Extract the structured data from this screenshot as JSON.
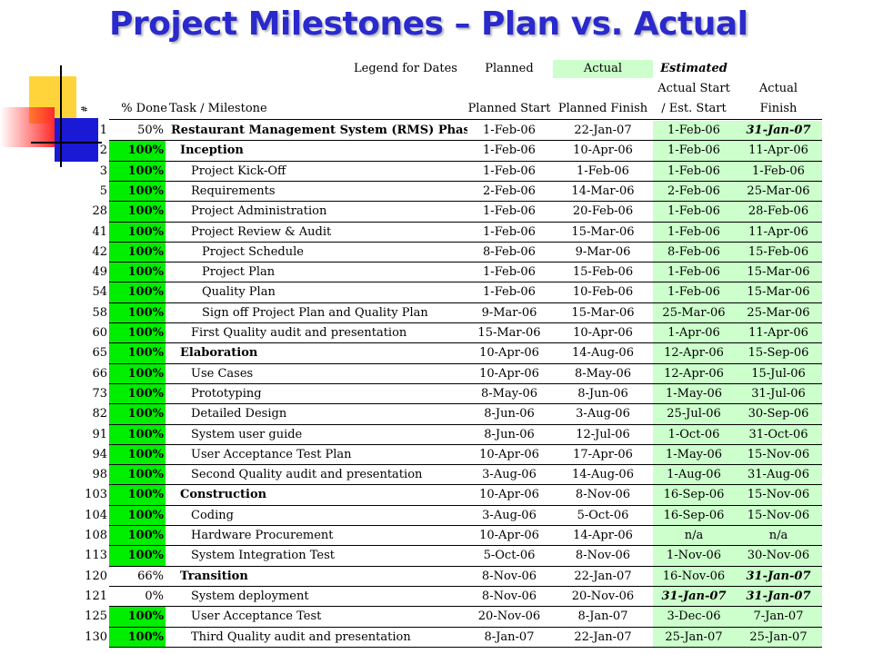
{
  "title": "Project Milestones – Plan vs. Actual",
  "legend": {
    "label": "Legend for Dates",
    "planned": "Planned",
    "actual": "Actual",
    "estimated": "Estimated"
  },
  "columns": {
    "num": "#",
    "pct": "% Done",
    "task": "Task / Milestone",
    "planned_start": "Planned Start",
    "planned_finish": "Planned Finish",
    "actual_start_1": "Actual Start",
    "actual_start_2": "/ Est. Start",
    "actual_finish_1": "Actual",
    "actual_finish_2": "Finish"
  },
  "colors": {
    "title": "#2a2acc",
    "done_green": "#00ee00",
    "actual_bg": "#ccffcc"
  },
  "rows": [
    {
      "num": "1",
      "pct": "50%",
      "task": "Restaurant Management System (RMS) Phase I",
      "level": "first",
      "bold": true,
      "ps": "1-Feb-06",
      "pf": "22-Jan-07",
      "as": "1-Feb-06",
      "af": "31-Jan-07",
      "as_est": false,
      "af_est": true,
      "green": false
    },
    {
      "num": "2",
      "pct": "100%",
      "task": "Inception",
      "level": "0",
      "bold": true,
      "ps": "1-Feb-06",
      "pf": "10-Apr-06",
      "as": "1-Feb-06",
      "af": "11-Apr-06",
      "as_est": false,
      "af_est": false,
      "green": true
    },
    {
      "num": "3",
      "pct": "100%",
      "task": "Project Kick-Off",
      "level": "1",
      "bold": false,
      "ps": "1-Feb-06",
      "pf": "1-Feb-06",
      "as": "1-Feb-06",
      "af": "1-Feb-06",
      "as_est": false,
      "af_est": false,
      "green": true
    },
    {
      "num": "5",
      "pct": "100%",
      "task": "Requirements",
      "level": "1",
      "bold": false,
      "ps": "2-Feb-06",
      "pf": "14-Mar-06",
      "as": "2-Feb-06",
      "af": "25-Mar-06",
      "as_est": false,
      "af_est": false,
      "green": true
    },
    {
      "num": "28",
      "pct": "100%",
      "task": "Project Administration",
      "level": "1",
      "bold": false,
      "ps": "1-Feb-06",
      "pf": "20-Feb-06",
      "as": "1-Feb-06",
      "af": "28-Feb-06",
      "as_est": false,
      "af_est": false,
      "green": true
    },
    {
      "num": "41",
      "pct": "100%",
      "task": "Project Review & Audit",
      "level": "1",
      "bold": false,
      "ps": "1-Feb-06",
      "pf": "15-Mar-06",
      "as": "1-Feb-06",
      "af": "11-Apr-06",
      "as_est": false,
      "af_est": false,
      "green": true
    },
    {
      "num": "42",
      "pct": "100%",
      "task": "Project Schedule",
      "level": "2",
      "bold": false,
      "ps": "8-Feb-06",
      "pf": "9-Mar-06",
      "as": "8-Feb-06",
      "af": "15-Feb-06",
      "as_est": false,
      "af_est": false,
      "green": true
    },
    {
      "num": "49",
      "pct": "100%",
      "task": "Project Plan",
      "level": "2",
      "bold": false,
      "ps": "1-Feb-06",
      "pf": "15-Feb-06",
      "as": "1-Feb-06",
      "af": "15-Mar-06",
      "as_est": false,
      "af_est": false,
      "green": true
    },
    {
      "num": "54",
      "pct": "100%",
      "task": "Quality Plan",
      "level": "2",
      "bold": false,
      "ps": "1-Feb-06",
      "pf": "10-Feb-06",
      "as": "1-Feb-06",
      "af": "15-Mar-06",
      "as_est": false,
      "af_est": false,
      "green": true
    },
    {
      "num": "58",
      "pct": "100%",
      "task": "Sign off Project Plan and Quality Plan",
      "level": "2",
      "bold": false,
      "ps": "9-Mar-06",
      "pf": "15-Mar-06",
      "as": "25-Mar-06",
      "af": "25-Mar-06",
      "as_est": false,
      "af_est": false,
      "green": true
    },
    {
      "num": "60",
      "pct": "100%",
      "task": "First Quality audit and presentation",
      "level": "1",
      "bold": false,
      "ps": "15-Mar-06",
      "pf": "10-Apr-06",
      "as": "1-Apr-06",
      "af": "11-Apr-06",
      "as_est": false,
      "af_est": false,
      "green": true
    },
    {
      "num": "65",
      "pct": "100%",
      "task": "Elaboration",
      "level": "0",
      "bold": true,
      "ps": "10-Apr-06",
      "pf": "14-Aug-06",
      "as": "12-Apr-06",
      "af": "15-Sep-06",
      "as_est": false,
      "af_est": false,
      "green": true
    },
    {
      "num": "66",
      "pct": "100%",
      "task": "Use Cases",
      "level": "1",
      "bold": false,
      "ps": "10-Apr-06",
      "pf": "8-May-06",
      "as": "12-Apr-06",
      "af": "15-Jul-06",
      "as_est": false,
      "af_est": false,
      "green": true
    },
    {
      "num": "73",
      "pct": "100%",
      "task": "Prototyping",
      "level": "1",
      "bold": false,
      "ps": "8-May-06",
      "pf": "8-Jun-06",
      "as": "1-May-06",
      "af": "31-Jul-06",
      "as_est": false,
      "af_est": false,
      "green": true
    },
    {
      "num": "82",
      "pct": "100%",
      "task": "Detailed Design",
      "level": "1",
      "bold": false,
      "ps": "8-Jun-06",
      "pf": "3-Aug-06",
      "as": "25-Jul-06",
      "af": "30-Sep-06",
      "as_est": false,
      "af_est": false,
      "green": true
    },
    {
      "num": "91",
      "pct": "100%",
      "task": "System user guide",
      "level": "1",
      "bold": false,
      "ps": "8-Jun-06",
      "pf": "12-Jul-06",
      "as": "1-Oct-06",
      "af": "31-Oct-06",
      "as_est": false,
      "af_est": false,
      "green": true
    },
    {
      "num": "94",
      "pct": "100%",
      "task": "User Acceptance Test Plan",
      "level": "1",
      "bold": false,
      "ps": "10-Apr-06",
      "pf": "17-Apr-06",
      "as": "1-May-06",
      "af": "15-Nov-06",
      "as_est": false,
      "af_est": false,
      "green": true
    },
    {
      "num": "98",
      "pct": "100%",
      "task": "Second Quality audit and presentation",
      "level": "1",
      "bold": false,
      "ps": "3-Aug-06",
      "pf": "14-Aug-06",
      "as": "1-Aug-06",
      "af": "31-Aug-06",
      "as_est": false,
      "af_est": false,
      "green": true
    },
    {
      "num": "103",
      "pct": "100%",
      "task": "Construction",
      "level": "0",
      "bold": true,
      "ps": "10-Apr-06",
      "pf": "8-Nov-06",
      "as": "16-Sep-06",
      "af": "15-Nov-06",
      "as_est": false,
      "af_est": false,
      "green": true
    },
    {
      "num": "104",
      "pct": "100%",
      "task": "Coding",
      "level": "1",
      "bold": false,
      "ps": "3-Aug-06",
      "pf": "5-Oct-06",
      "as": "16-Sep-06",
      "af": "15-Nov-06",
      "as_est": false,
      "af_est": false,
      "green": true
    },
    {
      "num": "108",
      "pct": "100%",
      "task": "Hardware Procurement",
      "level": "1",
      "bold": false,
      "ps": "10-Apr-06",
      "pf": "14-Apr-06",
      "as": "n/a",
      "af": "n/a",
      "as_est": false,
      "af_est": false,
      "green": true
    },
    {
      "num": "113",
      "pct": "100%",
      "task": "System Integration Test",
      "level": "1",
      "bold": false,
      "ps": "5-Oct-06",
      "pf": "8-Nov-06",
      "as": "1-Nov-06",
      "af": "30-Nov-06",
      "as_est": false,
      "af_est": false,
      "green": true
    },
    {
      "num": "120",
      "pct": "66%",
      "task": "Transition",
      "level": "0",
      "bold": true,
      "ps": "8-Nov-06",
      "pf": "22-Jan-07",
      "as": "16-Nov-06",
      "af": "31-Jan-07",
      "as_est": false,
      "af_est": true,
      "green": false
    },
    {
      "num": "121",
      "pct": "0%",
      "task": "System deployment",
      "level": "1",
      "bold": false,
      "ps": "8-Nov-06",
      "pf": "20-Nov-06",
      "as": "31-Jan-07",
      "af": "31-Jan-07",
      "as_est": true,
      "af_est": true,
      "green": false
    },
    {
      "num": "125",
      "pct": "100%",
      "task": "User Acceptance Test",
      "level": "1",
      "bold": false,
      "ps": "20-Nov-06",
      "pf": "8-Jan-07",
      "as": "3-Dec-06",
      "af": "7-Jan-07",
      "as_est": false,
      "af_est": false,
      "green": true
    },
    {
      "num": "130",
      "pct": "100%",
      "task": "Third Quality audit and presentation",
      "level": "1",
      "bold": false,
      "ps": "8-Jan-07",
      "pf": "22-Jan-07",
      "as": "25-Jan-07",
      "af": "25-Jan-07",
      "as_est": false,
      "af_est": false,
      "green": true
    }
  ]
}
